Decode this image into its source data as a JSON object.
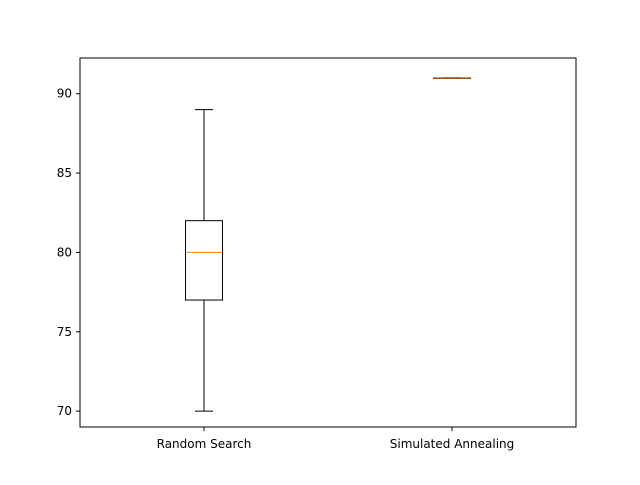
{
  "chart_data": {
    "type": "boxplot",
    "title": "",
    "xlabel": "",
    "ylabel": "",
    "ylim": [
      69,
      92.25
    ],
    "y_ticks": [
      70,
      75,
      80,
      85,
      90
    ],
    "categories": [
      "Random Search",
      "Simulated Annealing"
    ],
    "boxes": [
      {
        "category": "Random Search",
        "whisker_low": 70,
        "q1": 77,
        "median": 80,
        "q3": 82,
        "whisker_high": 89
      },
      {
        "category": "Simulated Annealing",
        "whisker_low": 91,
        "q1": 91,
        "median": 91,
        "q3": 91,
        "whisker_high": 91
      }
    ],
    "grid": false,
    "colors": {
      "box": "#000000",
      "median": "#ff7f0e"
    }
  }
}
